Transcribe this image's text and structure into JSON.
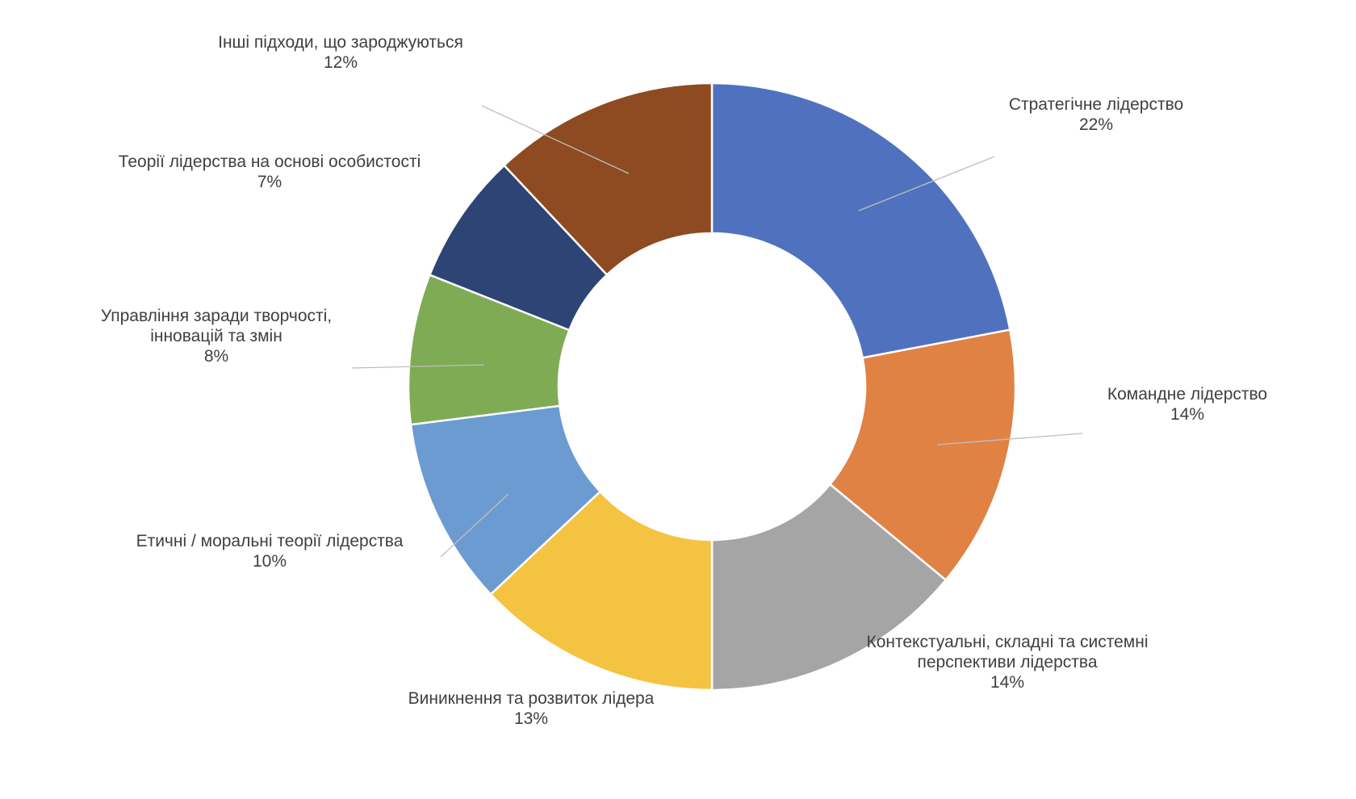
{
  "chart_data": {
    "type": "pie",
    "variant": "donut",
    "title": "",
    "legend": "none",
    "slices": [
      {
        "label": "Стратегічне лідерство",
        "pct_text": "22%",
        "value": 22,
        "color": "#5072BE"
      },
      {
        "label": "Командне лідерство",
        "pct_text": "14%",
        "value": 14,
        "color": "#E08244"
      },
      {
        "label": "Контекстуальні, складні та системні перспективи лідерства",
        "label_lines": [
          "Контекстуальні, складні та системні",
          "перспективи лідерства"
        ],
        "pct_text": "14%",
        "value": 14,
        "color": "#A5A5A5"
      },
      {
        "label": "Виникнення та розвиток лідера",
        "pct_text": "13%",
        "value": 13,
        "color": "#F5C342"
      },
      {
        "label": "Етичні / моральні теорії лідерства",
        "pct_text": "10%",
        "value": 10,
        "color": "#6C9BD2"
      },
      {
        "label": "Управління заради творчості, інновацій та змін",
        "label_lines": [
          "Управління заради творчості,",
          "інновацій та змін"
        ],
        "pct_text": "8%",
        "value": 8,
        "color": "#7FAB55"
      },
      {
        "label": "Теорії лідерства на основі особистості",
        "pct_text": "7%",
        "value": 7,
        "color": "#2D4474"
      },
      {
        "label": "Інші підходи, що зароджуються",
        "pct_text": "12%",
        "value": 12,
        "color": "#8E4A20"
      }
    ]
  }
}
